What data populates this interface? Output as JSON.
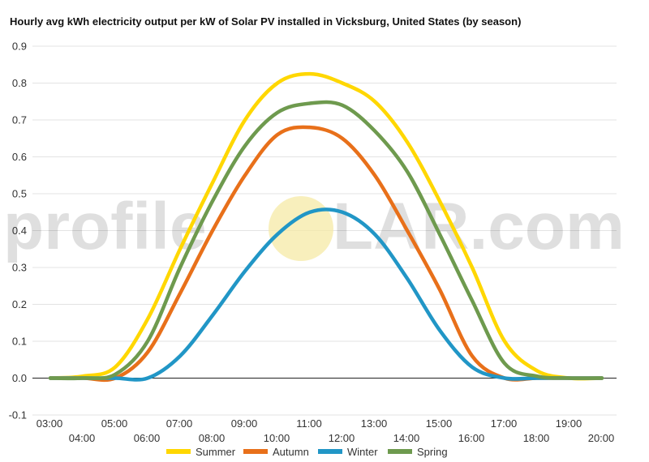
{
  "chart_data": {
    "type": "line",
    "title": "Hourly avg kWh electricity output per kW of Solar PV installed in Vicksburg, United States (by season)",
    "xlabel": "",
    "ylabel": "",
    "x": [
      "03:00",
      "04:00",
      "05:00",
      "06:00",
      "07:00",
      "08:00",
      "09:00",
      "10:00",
      "11:00",
      "12:00",
      "13:00",
      "14:00",
      "15:00",
      "16:00",
      "17:00",
      "18:00",
      "19:00",
      "20:00"
    ],
    "ylim": [
      -0.1,
      0.9
    ],
    "yticks": [
      "-0.1",
      "0.0",
      "0.1",
      "0.2",
      "0.3",
      "0.4",
      "0.5",
      "0.6",
      "0.7",
      "0.8",
      "0.9"
    ],
    "grid": true,
    "legend": "bottom",
    "watermark": {
      "left": "profile",
      "right": "LAR.com",
      "colors": {
        "sun": "#f5e9a6"
      }
    },
    "series": [
      {
        "name": "Summer",
        "color": "#ffd700",
        "values": [
          0.0,
          0.005,
          0.03,
          0.16,
          0.35,
          0.53,
          0.7,
          0.8,
          0.825,
          0.8,
          0.75,
          0.64,
          0.48,
          0.3,
          0.1,
          0.02,
          0.0,
          0.0
        ]
      },
      {
        "name": "Autumn",
        "color": "#e8701a",
        "values": [
          0.0,
          0.0,
          0.0,
          0.07,
          0.23,
          0.4,
          0.55,
          0.66,
          0.68,
          0.65,
          0.55,
          0.4,
          0.24,
          0.06,
          0.0,
          0.0,
          0.0,
          0.0
        ]
      },
      {
        "name": "Winter",
        "color": "#2196c6",
        "values": [
          0.0,
          0.0,
          0.0,
          0.0,
          0.06,
          0.17,
          0.29,
          0.39,
          0.45,
          0.45,
          0.39,
          0.27,
          0.13,
          0.03,
          0.0,
          0.0,
          0.0,
          0.0
        ]
      },
      {
        "name": "Spring",
        "color": "#6e9a4e",
        "values": [
          0.0,
          0.0,
          0.01,
          0.1,
          0.3,
          0.48,
          0.63,
          0.72,
          0.745,
          0.74,
          0.67,
          0.56,
          0.39,
          0.21,
          0.04,
          0.005,
          0.0,
          0.0
        ]
      }
    ]
  }
}
